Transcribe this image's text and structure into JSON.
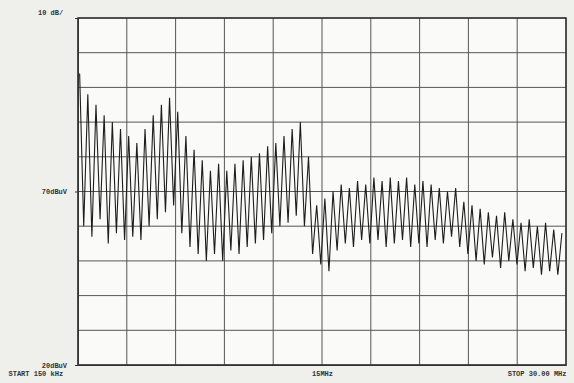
{
  "chart_data": {
    "type": "line",
    "annotations": [
      "10 dB/"
    ],
    "x": [
      0.25,
      0.5,
      0.75,
      1.0,
      1.25,
      1.5,
      1.75,
      2.0,
      2.25,
      2.5,
      2.75,
      3.0,
      3.25,
      3.5,
      3.75,
      4.0,
      4.25,
      4.5,
      4.75,
      5.0,
      5.25,
      5.5,
      5.75,
      6.0,
      6.25,
      6.5,
      6.75,
      7.0,
      7.25,
      7.5,
      7.75,
      8.0,
      8.25,
      8.5,
      8.75,
      9.0,
      9.25,
      9.5,
      9.75,
      10.0,
      10.25,
      10.5,
      10.75,
      11.0,
      11.25,
      11.5,
      11.75,
      12.0,
      12.25,
      12.5,
      12.75,
      13.0,
      13.25,
      13.5,
      13.75,
      14.0,
      14.25,
      14.5,
      14.75,
      15.0,
      15.25,
      15.5,
      15.75,
      16.0,
      16.25,
      16.5,
      16.75,
      17.0,
      17.25,
      17.5,
      17.75,
      18.0,
      18.25,
      18.5,
      18.75,
      19.0,
      19.25,
      19.5,
      19.75,
      20.0,
      20.25,
      20.5,
      20.75,
      21.0,
      21.25,
      21.5,
      21.75,
      22.0,
      22.25,
      22.5,
      22.75,
      23.0,
      23.25,
      23.5,
      23.75,
      24.0,
      24.25,
      24.5,
      24.75,
      25.0,
      25.25,
      25.5,
      25.75,
      26.0,
      26.25,
      26.5,
      26.75,
      27.0,
      27.25,
      27.5,
      27.75,
      28.0,
      28.25,
      28.5,
      28.75,
      29.0,
      29.25,
      29.5,
      29.75
    ],
    "series": [
      {
        "color": "#1e1e1e",
        "values": [
          104,
          60,
          98,
          57,
          95,
          62,
          92,
          55,
          90,
          58,
          88,
          56,
          86,
          57,
          84,
          56,
          88,
          60,
          92,
          62,
          95,
          64,
          97,
          66,
          93,
          58,
          86,
          54,
          82,
          52,
          79,
          50,
          76,
          52,
          78,
          50,
          76,
          53,
          78,
          52,
          79,
          54,
          80,
          55,
          81,
          56,
          83,
          58,
          84,
          60,
          86,
          61,
          88,
          63,
          90,
          60,
          80,
          52,
          66,
          49,
          68,
          47,
          70,
          53,
          72,
          55,
          71,
          54,
          73,
          56,
          72,
          55,
          74,
          56,
          73,
          54,
          74,
          55,
          73,
          56,
          74,
          54,
          72,
          55,
          73,
          54,
          72,
          56,
          71,
          55,
          70,
          57,
          71,
          54,
          67,
          52,
          66,
          50,
          65,
          49,
          64,
          51,
          63,
          48,
          64,
          50,
          62,
          49,
          61,
          47,
          62,
          48,
          60,
          46,
          61,
          47,
          59,
          46,
          58
        ]
      }
    ],
    "xlim": [
      0.15,
      30
    ],
    "xticks": [
      {
        "value": 0.15,
        "label": "START 150 kHz"
      },
      {
        "value": 15.075,
        "label": "15MHz"
      },
      {
        "value": 30,
        "label": "STOP 30.00 MHz"
      }
    ],
    "ylim": [
      20,
      120
    ],
    "yticks": [
      {
        "value": 20,
        "label": "20dBuV"
      },
      {
        "value": 70,
        "label": "70dBuV"
      }
    ],
    "grid": true
  }
}
